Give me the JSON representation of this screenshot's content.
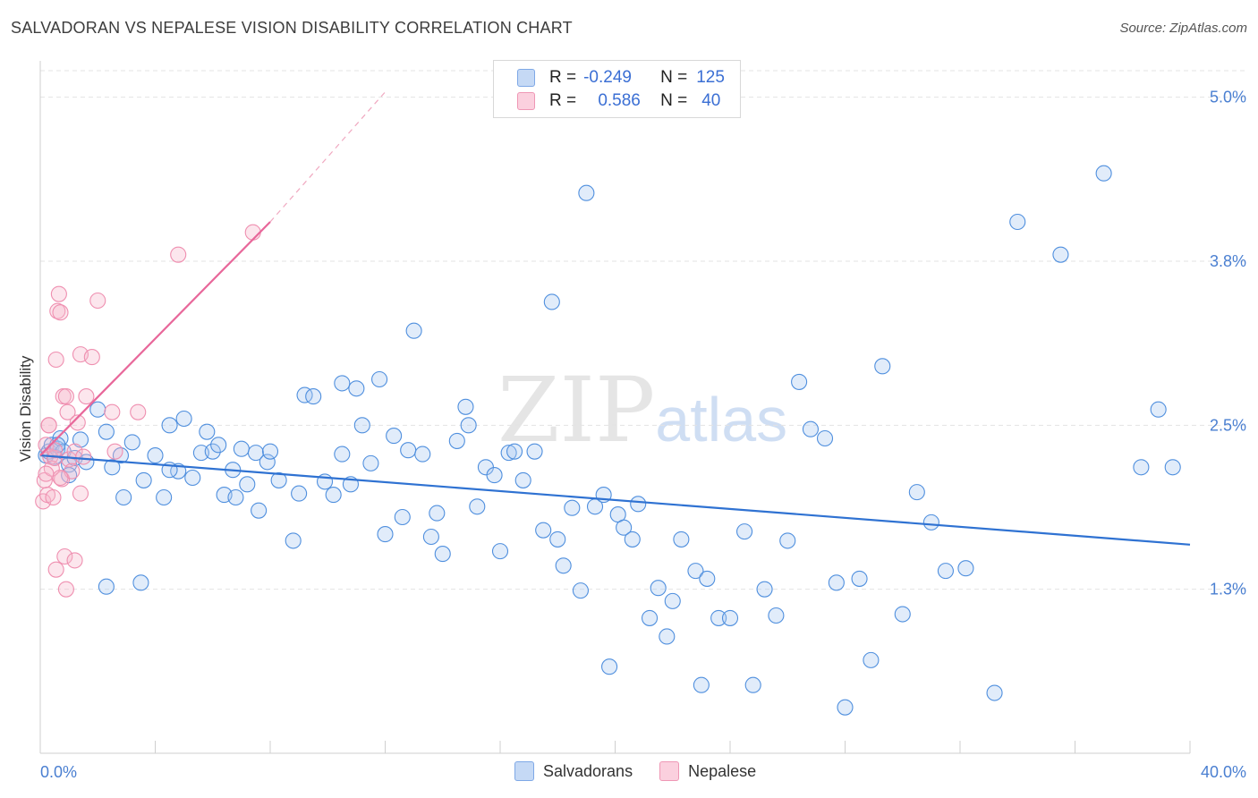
{
  "title": "SALVADORAN VS NEPALESE VISION DISABILITY CORRELATION CHART",
  "source": "Source: ZipAtlas.com",
  "watermark": {
    "zip": "ZIP",
    "atlas": "atlas"
  },
  "legend": {
    "rows": [
      {
        "r_label": "R =",
        "r_value": "-0.249",
        "n_label": "N =",
        "n_value": "125",
        "color": "#a8c6ef"
      },
      {
        "r_label": "R =",
        "r_value": "0.586",
        "n_label": "N =",
        "n_value": "40",
        "color": "#f7b6cb"
      }
    ]
  },
  "bottom_legend": {
    "series1": "Salvadorans",
    "series2": "Nepalese"
  },
  "chart_data": {
    "type": "scatter",
    "title": "SALVADORAN VS NEPALESE VISION DISABILITY CORRELATION CHART",
    "xlabel": "",
    "ylabel": "Vision Disability",
    "xlim": [
      0,
      40
    ],
    "ylim": [
      0,
      5.25
    ],
    "x_tick_labels": [
      "0.0%",
      "40.0%"
    ],
    "y_ticks": [
      1.25,
      2.5,
      3.75,
      5.0
    ],
    "y_tick_labels": [
      "1.3%",
      "2.5%",
      "3.8%",
      "5.0%"
    ],
    "grid": true,
    "legend_position": "top-center",
    "colors": {
      "salvadorans": "#4f8fde",
      "nepalese": "#ef8fb0",
      "salv_line": "#2f72d2",
      "nep_line": "#e8679a"
    },
    "series": [
      {
        "name": "Salvadorans",
        "x": [
          0.2,
          0.3,
          0.4,
          0.5,
          0.6,
          0.7,
          0.8,
          1.0,
          1.2,
          1.4,
          1.6,
          2.0,
          2.3,
          2.5,
          2.8,
          3.2,
          3.6,
          4.0,
          4.3,
          4.5,
          4.8,
          5.0,
          5.3,
          5.6,
          5.8,
          6.0,
          6.2,
          6.4,
          6.7,
          6.8,
          7.0,
          7.2,
          7.5,
          7.6,
          7.9,
          8.0,
          8.3,
          8.8,
          9.0,
          9.2,
          9.5,
          9.9,
          10.2,
          10.5,
          10.5,
          10.8,
          11.0,
          11.2,
          11.5,
          11.8,
          12.0,
          12.3,
          12.6,
          12.8,
          13.0,
          13.3,
          13.6,
          13.8,
          14.0,
          14.5,
          14.8,
          14.9,
          15.2,
          15.5,
          15.8,
          16.0,
          16.3,
          16.5,
          16.8,
          17.2,
          17.5,
          17.8,
          18.0,
          18.2,
          18.5,
          18.8,
          19.0,
          19.3,
          19.6,
          19.8,
          20.1,
          20.3,
          20.6,
          20.8,
          21.2,
          21.5,
          21.8,
          22.0,
          22.3,
          22.8,
          23.0,
          23.2,
          23.6,
          24.0,
          24.5,
          24.8,
          25.2,
          25.6,
          26.0,
          26.4,
          26.8,
          27.3,
          27.7,
          28.0,
          28.5,
          28.9,
          29.3,
          30.0,
          30.5,
          31.0,
          31.5,
          32.2,
          33.2,
          34.0,
          35.5,
          37.0,
          38.3,
          38.9,
          39.4,
          0.6,
          1.0,
          2.3,
          2.9,
          3.5,
          4.5
        ],
        "y": [
          2.27,
          2.3,
          2.35,
          2.26,
          2.32,
          2.4,
          2.3,
          2.2,
          2.25,
          2.39,
          2.22,
          2.62,
          2.45,
          2.18,
          2.27,
          2.37,
          2.08,
          2.27,
          1.95,
          2.5,
          2.15,
          2.55,
          2.1,
          2.29,
          2.45,
          2.3,
          2.35,
          1.97,
          2.16,
          1.95,
          2.32,
          2.05,
          2.29,
          1.85,
          2.22,
          2.3,
          2.08,
          1.62,
          1.98,
          2.73,
          2.72,
          2.07,
          1.97,
          2.28,
          2.82,
          2.05,
          2.78,
          2.5,
          2.21,
          2.85,
          1.67,
          2.42,
          1.8,
          2.31,
          3.22,
          2.28,
          1.65,
          1.83,
          1.52,
          2.38,
          2.64,
          2.5,
          1.88,
          2.18,
          2.12,
          1.54,
          2.29,
          2.3,
          2.08,
          2.3,
          1.7,
          3.44,
          1.63,
          1.43,
          1.87,
          1.24,
          4.27,
          1.88,
          1.97,
          0.66,
          1.82,
          1.72,
          1.63,
          1.9,
          1.03,
          1.26,
          0.89,
          1.16,
          1.63,
          1.39,
          0.52,
          1.33,
          1.03,
          1.03,
          1.69,
          0.52,
          1.25,
          1.05,
          1.62,
          2.83,
          2.47,
          2.4,
          1.3,
          0.35,
          1.33,
          0.71,
          2.95,
          1.06,
          1.99,
          1.76,
          1.39,
          1.41,
          0.46,
          4.05,
          3.8,
          4.42,
          2.18,
          2.62,
          2.18,
          2.35,
          2.12,
          1.27,
          1.95,
          1.3,
          2.16
        ]
      },
      {
        "name": "Nepalese",
        "x": [
          0.1,
          0.15,
          0.2,
          0.25,
          0.3,
          0.35,
          0.4,
          0.5,
          0.55,
          0.6,
          0.65,
          0.7,
          0.75,
          0.8,
          0.9,
          0.95,
          1.0,
          1.1,
          1.2,
          1.3,
          1.4,
          1.5,
          1.6,
          1.8,
          2.0,
          2.5,
          3.4,
          4.8,
          7.4,
          0.3,
          0.45,
          0.5,
          0.7,
          0.85,
          1.2,
          1.4,
          0.2,
          0.55,
          0.9,
          2.6
        ],
        "y": [
          1.92,
          2.08,
          2.35,
          1.97,
          2.5,
          2.26,
          2.17,
          2.25,
          3.0,
          3.37,
          3.5,
          3.36,
          2.09,
          2.72,
          2.72,
          2.6,
          2.24,
          2.15,
          2.3,
          2.52,
          3.04,
          2.26,
          2.72,
          3.02,
          3.45,
          2.6,
          2.6,
          3.8,
          3.97,
          2.5,
          1.95,
          2.31,
          2.1,
          1.5,
          1.47,
          1.98,
          2.13,
          1.4,
          1.25,
          2.3
        ]
      }
    ],
    "trendlines": [
      {
        "name": "Salvadorans",
        "x": [
          0,
          40
        ],
        "y": [
          2.27,
          1.59
        ]
      },
      {
        "name": "Nepalese",
        "x": [
          0,
          8.0
        ],
        "y": [
          2.27,
          4.05
        ],
        "dashed_extension_to": [
          12.0,
          5.04
        ]
      }
    ]
  }
}
